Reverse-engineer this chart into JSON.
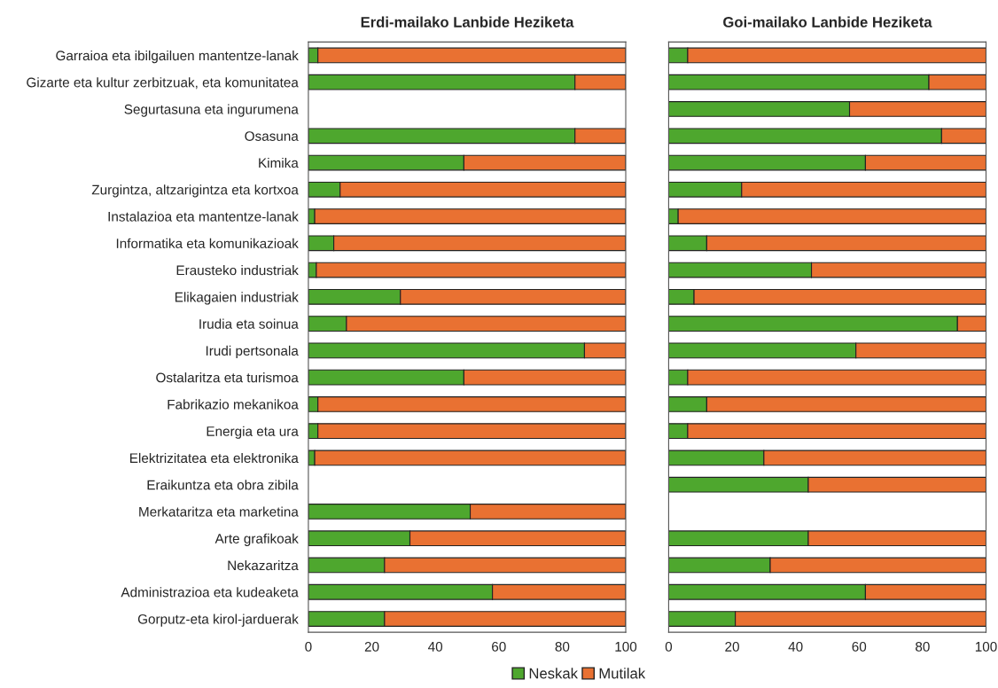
{
  "chart_data": [
    {
      "type": "bar",
      "orientation": "horizontal",
      "stacked": true,
      "title": "Erdi-mailako Lanbide Heziketa",
      "legend": "bottom",
      "categories": [
        "Garraioa eta ibilgailuen mantentze-lanak",
        "Gizarte eta kultur zerbitzuak, eta komunitatea",
        "Segurtasuna eta ingurumena",
        "Osasuna",
        "Kimika",
        "Zurgintza, altzarigintza eta kortxoa",
        "Instalazioa eta mantentze-lanak",
        "Informatika eta komunikazioak",
        "Erausteko industriak",
        "Elikagaien industriak",
        "Irudia eta soinua",
        "Irudi pertsonala",
        "Ostalaritza eta turismoa",
        "Fabrikazio mekanikoa",
        "Energia eta ura",
        "Elektrizitatea eta elektronika",
        "Eraikuntza eta obra zibila",
        "Merkataritza eta marketina",
        "Arte grafikoak",
        "Nekazaritza",
        "Administrazioa eta kudeaketa",
        "Gorputz-eta kirol-jarduerak"
      ],
      "series": [
        {
          "name": "Neskak",
          "color": "#4ea72e",
          "values": [
            3,
            84,
            null,
            84,
            49,
            10,
            2,
            8,
            2.5,
            29,
            12,
            87,
            49,
            3,
            3,
            2,
            null,
            51,
            32,
            24,
            58,
            24
          ]
        },
        {
          "name": "Mutilak",
          "color": "#e97132",
          "values": [
            97,
            16,
            null,
            16,
            51,
            90,
            98,
            92,
            97.5,
            71,
            88,
            13,
            51,
            97,
            97,
            98,
            null,
            49,
            68,
            76,
            42,
            76
          ]
        }
      ],
      "xlim": [
        0,
        100
      ],
      "xticks": [
        0,
        20,
        40,
        60,
        80,
        100
      ]
    },
    {
      "type": "bar",
      "orientation": "horizontal",
      "stacked": true,
      "title": "Goi-mailako Lanbide Heziketa",
      "tick_labels": "x",
      "categories": [
        null,
        null,
        null,
        null,
        null,
        null,
        null,
        null,
        null,
        null,
        null,
        null,
        null,
        null,
        null,
        null,
        null,
        null,
        null,
        null,
        null,
        null
      ],
      "series": [
        {
          "name": "Neskak",
          "color": "#4ea72e",
          "values": [
            6,
            82,
            57,
            86,
            62,
            23,
            3,
            12,
            45,
            8,
            91,
            59,
            6,
            12,
            6,
            30,
            44,
            null,
            44,
            32,
            62,
            21
          ]
        },
        {
          "name": "Mutilak",
          "color": "#e97132",
          "values": [
            94,
            18,
            43,
            14,
            38,
            77,
            97,
            88,
            55,
            92,
            9,
            41,
            94,
            88,
            94,
            70,
            56,
            null,
            56,
            68,
            38,
            79
          ]
        }
      ],
      "xlim": [
        0,
        100
      ],
      "xticks": [
        0,
        20,
        40,
        60,
        80,
        100
      ]
    }
  ]
}
